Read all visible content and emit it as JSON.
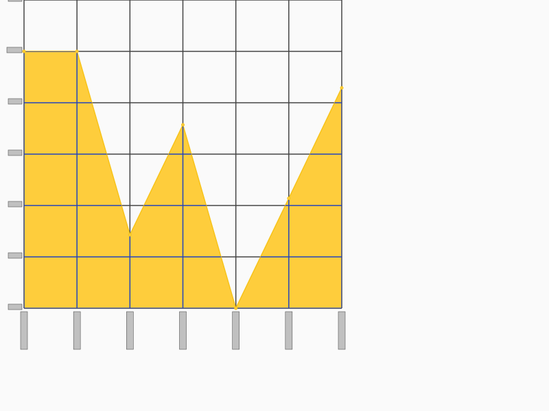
{
  "chart_data": {
    "type": "area",
    "title": "",
    "xlabel": "",
    "ylabel": "",
    "x": [
      0,
      1,
      2,
      3,
      4,
      5,
      6
    ],
    "xlim": [
      0,
      6
    ],
    "ylim": [
      0,
      6
    ],
    "y_ticks": [
      0,
      1,
      2,
      3,
      4,
      5,
      6
    ],
    "grid": true,
    "legend": "none",
    "series": [
      {
        "values": [
          5.0,
          5.0,
          1.43,
          3.57,
          0.0,
          2.14,
          4.29
        ]
      }
    ],
    "colors": {
      "fill": "#fecd3c",
      "line": "#f7c31a",
      "grid_vertical": "#444444",
      "grid_horizontal": "#2244bb",
      "background": "#fafafa",
      "tick_label_placeholder": "#c0c0c0"
    }
  }
}
